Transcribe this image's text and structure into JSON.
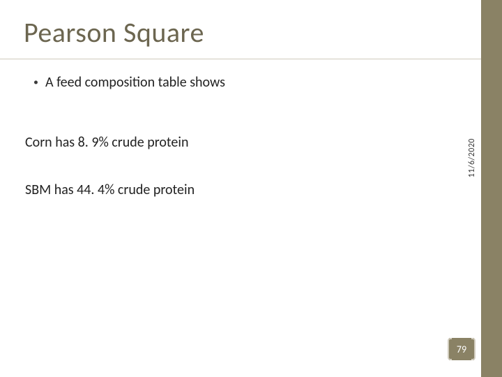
{
  "colors": {
    "accent": "#8a8265",
    "title": "#6c6650",
    "divider": "#cfcabb",
    "bracket": "#d2cdbf",
    "text": "#222222",
    "badge_text": "#ffffff"
  },
  "title": "Pearson Square",
  "bullet": {
    "marker": "•",
    "text": "A feed composition table shows"
  },
  "body": {
    "line1": "Corn has 8. 9% crude protein",
    "line2": "SBM has 44. 4% crude protein"
  },
  "date": "11/6/2020",
  "page_number": "79"
}
